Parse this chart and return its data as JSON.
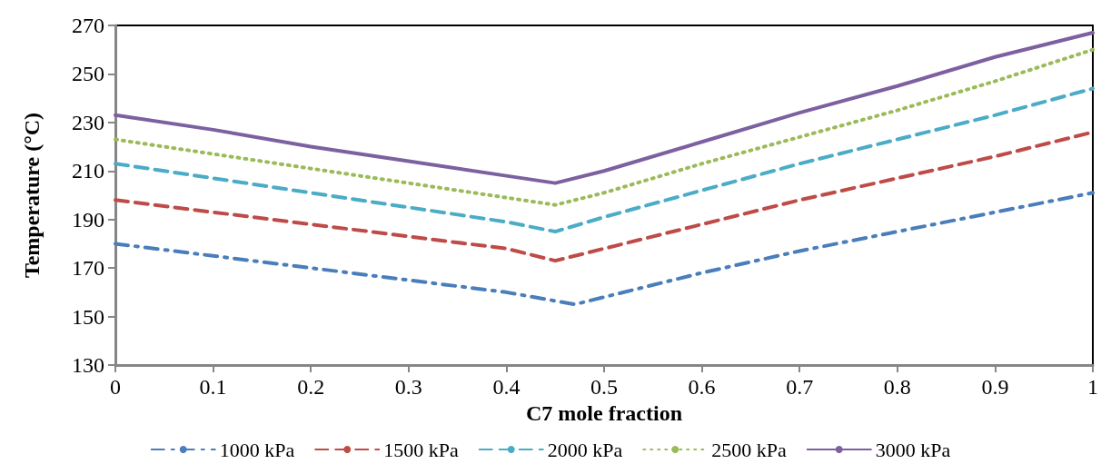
{
  "chart_data": {
    "type": "line",
    "xlabel": "C7 mole fraction",
    "ylabel": "Temperature (°C)",
    "x": [
      0,
      0.1,
      0.2,
      0.3,
      0.4,
      0.45,
      0.5,
      0.6,
      0.7,
      0.8,
      0.9,
      1
    ],
    "xlim": [
      0,
      1
    ],
    "xticks": [
      0,
      0.1,
      0.2,
      0.3,
      0.4,
      0.5,
      0.6,
      0.7,
      0.8,
      0.9,
      1
    ],
    "ylim": [
      130,
      270
    ],
    "yticks": [
      130,
      150,
      170,
      190,
      210,
      230,
      250,
      270
    ],
    "grid": false,
    "legend": "bottom",
    "marker": "none",
    "series": [
      {
        "name": "1000 kPa",
        "color": "#4a7ebb",
        "line_style": "dashdot",
        "x": [
          0,
          0.1,
          0.2,
          0.3,
          0.4,
          0.47,
          0.5,
          0.6,
          0.7,
          0.8,
          0.9,
          1
        ],
        "values": [
          180,
          175,
          170,
          165,
          160,
          155,
          158,
          168,
          177,
          185,
          193,
          201
        ]
      },
      {
        "name": "1500 kPa",
        "color": "#be4b48",
        "line_style": "dashed",
        "values": [
          198,
          193,
          188,
          183,
          178,
          173,
          178,
          188,
          198,
          207,
          216,
          226
        ]
      },
      {
        "name": "2000 kPa",
        "color": "#4bacc6",
        "line_style": "dashed",
        "values": [
          213,
          207,
          201,
          195,
          189,
          185,
          191,
          202,
          213,
          223,
          233,
          244
        ]
      },
      {
        "name": "2500 kPa",
        "color": "#9bbb59",
        "line_style": "dotted",
        "values": [
          223,
          217,
          211,
          205,
          199,
          196,
          201,
          213,
          224,
          235,
          247,
          260
        ]
      },
      {
        "name": "3000 kPa",
        "color": "#7d60a0",
        "line_style": "solid",
        "values": [
          233,
          227,
          220,
          214,
          208,
          205,
          210,
          222,
          234,
          245,
          257,
          267
        ]
      }
    ]
  }
}
